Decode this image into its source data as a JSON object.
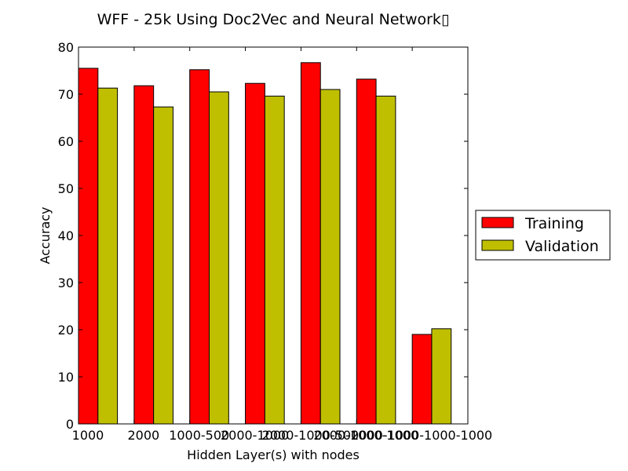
{
  "chart_data": {
    "type": "bar",
    "title": "WFF - 25k Using Doc2Vec and Neural Network▯",
    "xlabel": "Hidden Layer(s) with nodes",
    "ylabel": "Accuracy",
    "ylim": [
      0,
      80
    ],
    "yticks": [
      0,
      10,
      20,
      30,
      40,
      50,
      60,
      70,
      80
    ],
    "categories": [
      "1000",
      "2000",
      "1000-500",
      "2000-1000",
      "2000-1000-500",
      "2000-1000-1000",
      "2000-1000-1000-1000"
    ],
    "series": [
      {
        "name": "Training",
        "color": "#ff0000",
        "values": [
          75.5,
          71.8,
          75.2,
          72.3,
          76.7,
          73.2,
          19.0
        ]
      },
      {
        "name": "Validation",
        "color": "#bfbf00",
        "values": [
          71.3,
          67.3,
          70.5,
          69.6,
          71.0,
          69.6,
          20.2
        ]
      }
    ],
    "legend": "outside-right",
    "grid": false
  }
}
